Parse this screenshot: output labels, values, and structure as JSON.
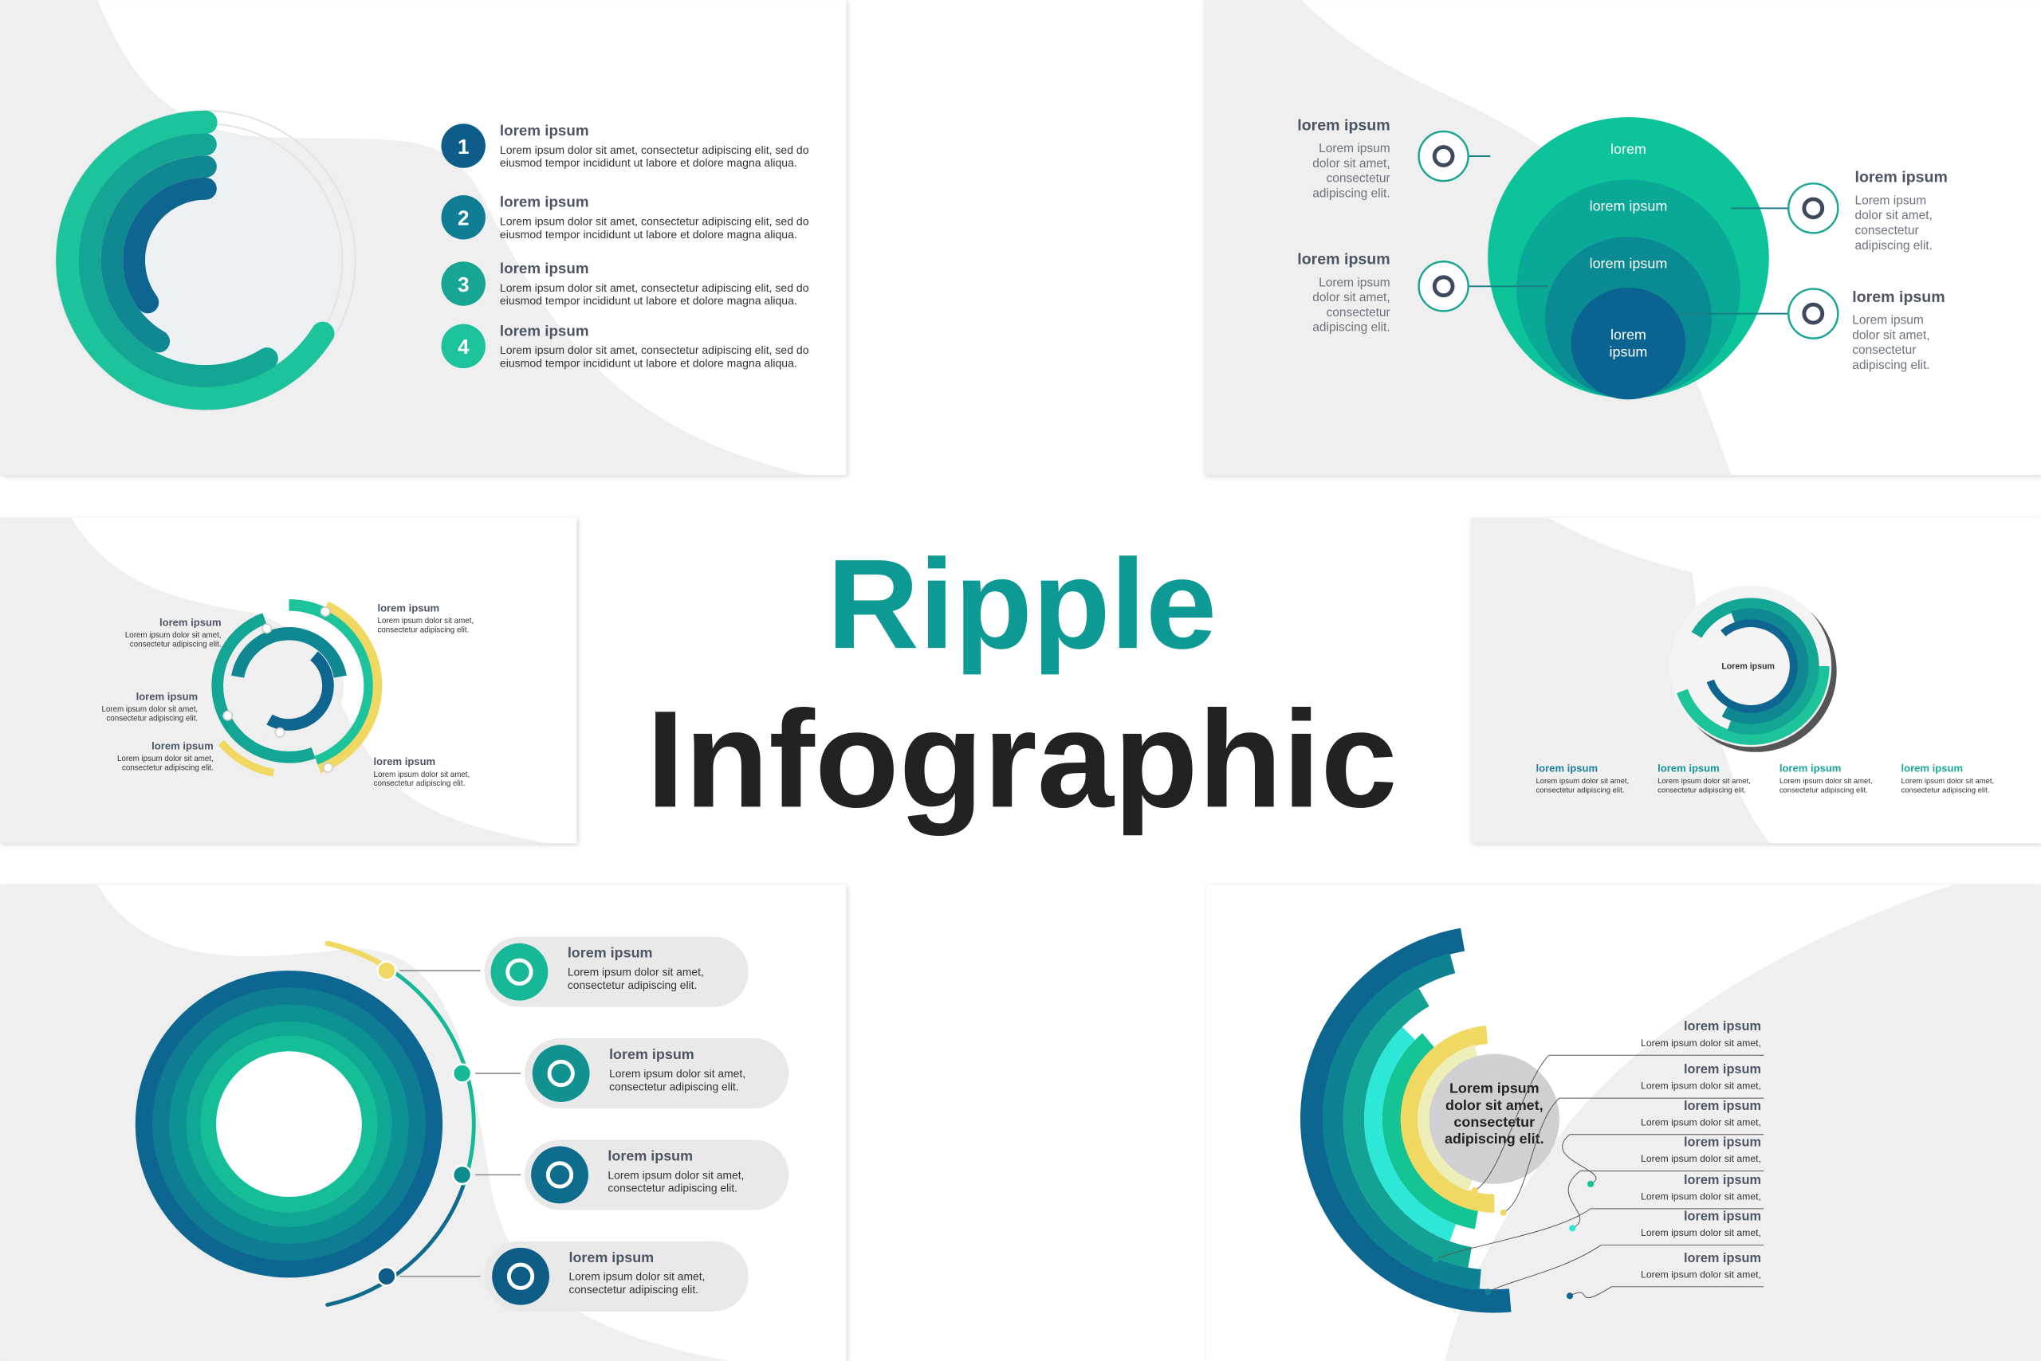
{
  "title": {
    "line1": "Ripple",
    "line2": "Infographic",
    "accent_color": "#0e9a94",
    "dark_color": "#222222"
  },
  "palette": {
    "blue": "#0c6690",
    "teal": "#0e8b93",
    "green": "#14c398",
    "cyan": "#2de8d8",
    "yellow": "#f0d862",
    "gray": "#efefef"
  },
  "slide_numbered": {
    "items": [
      {
        "num": "1",
        "title": "lorem ipsum",
        "line1": "Lorem ipsum dolor sit amet, consectetur adipiscing elit, sed do",
        "line2": "eiusmod tempor incididunt ut labore et dolore magna aliqua."
      },
      {
        "num": "2",
        "title": "lorem ipsum",
        "line1": "Lorem ipsum dolor sit amet, consectetur adipiscing elit, sed do",
        "line2": "eiusmod tempor incididunt ut labore et dolore magna aliqua."
      },
      {
        "num": "3",
        "title": "lorem ipsum",
        "line1": "Lorem ipsum dolor sit amet, consectetur adipiscing elit, sed do",
        "line2": "eiusmod tempor incididunt ut labore et dolore magna aliqua."
      },
      {
        "num": "4",
        "title": "lorem ipsum",
        "line1": "Lorem ipsum dolor sit amet, consectetur adipiscing elit, sed do",
        "line2": "eiusmod tempor incididunt ut labore et dolore magna aliqua."
      }
    ]
  },
  "slide_nested": {
    "layers": [
      "lorem",
      "lorem ipsum",
      "lorem ipsum",
      "lorem",
      "ipsum"
    ],
    "blocks": [
      {
        "icon": "target-icon",
        "title": "lorem ipsum",
        "lines": [
          "Lorem ipsum",
          "dolor sit amet,",
          "consectetur",
          "adipiscing elit."
        ]
      },
      {
        "icon": "gear-wrench-icon",
        "title": "lorem ipsum",
        "lines": [
          "Lorem ipsum",
          "dolor sit amet,",
          "consectetur",
          "adipiscing elit."
        ]
      },
      {
        "icon": "support-24-icon",
        "title": "lorem ipsum",
        "lines": [
          "Lorem ipsum",
          "dolor sit amet,",
          "consectetur",
          "adipiscing elit."
        ]
      },
      {
        "icon": "clock-arrows-icon",
        "title": "lorem ipsum",
        "lines": [
          "Lorem ipsum",
          "dolor sit amet,",
          "consectetur",
          "adipiscing elit."
        ]
      }
    ]
  },
  "slide_segments": {
    "blocks": [
      {
        "title": "lorem ipsum",
        "line1": "Lorem ipsum  dolor sit amet,",
        "line2": "consectetur adipiscing elit."
      },
      {
        "title": "lorem ipsum",
        "line1": "Lorem ipsum  dolor sit amet,",
        "line2": "consectetur adipiscing elit."
      },
      {
        "title": "lorem ipsum",
        "line1": "Lorem ipsum  dolor sit amet,",
        "line2": "consectetur adipiscing elit."
      },
      {
        "title": "lorem ipsum",
        "line1": "Lorem ipsum  dolor sit amet,",
        "line2": "consectetur adipiscing elit."
      },
      {
        "title": "lorem ipsum",
        "line1": "Lorem ipsum  dolor sit amet,",
        "line2": "consectetur adipiscing elit."
      }
    ]
  },
  "slide_disc": {
    "center": "Lorem ipsum",
    "blocks": [
      {
        "title": "lorem ipsum",
        "line1": "Lorem ipsum  dolor sit amet,",
        "line2": "consectetur adipiscing elit.",
        "color": "#1a7fa0"
      },
      {
        "title": "lorem ipsum",
        "line1": "Lorem ipsum  dolor sit amet,",
        "line2": "consectetur adipiscing elit.",
        "color": "#14959a"
      },
      {
        "title": "lorem ipsum",
        "line1": "Lorem ipsum  dolor sit amet,",
        "line2": "consectetur adipiscing elit.",
        "color": "#17a59a"
      },
      {
        "title": "lorem ipsum",
        "line1": "Lorem ipsum  dolor sit amet,",
        "line2": "consectetur adipiscing elit.",
        "color": "#1aaa9a"
      }
    ]
  },
  "slide_timeline": {
    "cards": [
      {
        "icon": "target-icon",
        "title": "lorem ipsum",
        "line1": "Lorem ipsum  dolor sit amet,",
        "line2": "consectetur adipiscing elit."
      },
      {
        "icon": "support-24-icon",
        "title": "lorem ipsum",
        "line1": "Lorem ipsum  dolor sit amet,",
        "line2": "consectetur adipiscing elit."
      },
      {
        "icon": "clock-arrows-icon",
        "title": "lorem ipsum",
        "line1": "Lorem ipsum  dolor sit amet,",
        "line2": "consectetur adipiscing elit."
      },
      {
        "icon": "gear-wrench-icon",
        "title": "lorem ipsum",
        "line1": "Lorem ipsum  dolor sit amet,",
        "line2": "consectetur adipiscing elit."
      }
    ]
  },
  "slide_semicircle": {
    "center": [
      "Lorem ipsum",
      "dolor sit amet,",
      "consectetur",
      "adipiscing elit."
    ],
    "items": [
      {
        "title": "lorem ipsum",
        "line": "Lorem ipsum  dolor sit amet,"
      },
      {
        "title": "lorem ipsum",
        "line": "Lorem ipsum  dolor sit amet,"
      },
      {
        "title": "lorem ipsum",
        "line": "Lorem ipsum  dolor sit amet,"
      },
      {
        "title": "lorem ipsum",
        "line": "Lorem ipsum  dolor sit amet,"
      },
      {
        "title": "lorem ipsum",
        "line": "Lorem ipsum  dolor sit amet,"
      },
      {
        "title": "lorem ipsum",
        "line": "Lorem ipsum  dolor sit amet,"
      },
      {
        "title": "lorem ipsum",
        "line": "Lorem ipsum  dolor sit amet,"
      }
    ]
  }
}
